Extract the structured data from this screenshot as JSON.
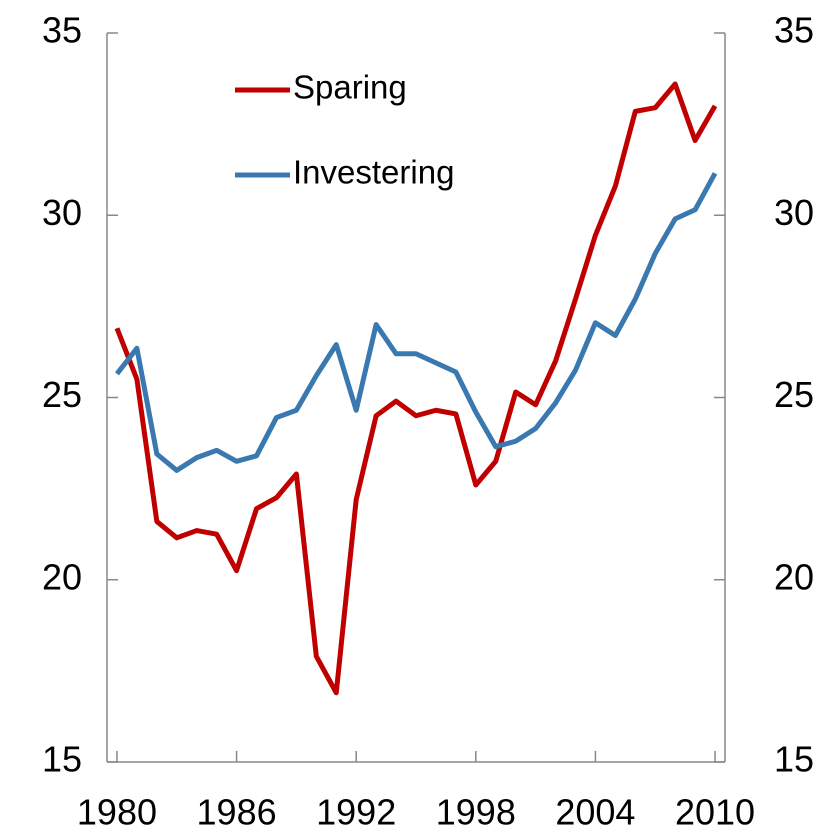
{
  "chart_data": {
    "type": "line",
    "x": [
      1980,
      1981,
      1982,
      1983,
      1984,
      1985,
      1986,
      1987,
      1988,
      1989,
      1990,
      1991,
      1992,
      1993,
      1994,
      1995,
      1996,
      1997,
      1998,
      1999,
      2000,
      2001,
      2002,
      2003,
      2004,
      2005,
      2006,
      2007,
      2008,
      2009,
      2010
    ],
    "series": [
      {
        "name": "Sparing",
        "color": "#c00000",
        "values": [
          26.9,
          25.5,
          21.6,
          21.15,
          21.35,
          21.25,
          20.25,
          21.95,
          22.25,
          22.9,
          17.9,
          16.9,
          22.2,
          24.5,
          24.9,
          24.5,
          24.65,
          24.55,
          22.6,
          23.25,
          25.15,
          24.8,
          26.0,
          27.7,
          29.45,
          30.8,
          32.85,
          32.95,
          33.6,
          32.05,
          33.0
        ]
      },
      {
        "name": "Investering",
        "color": "#3a78b0",
        "values": [
          25.65,
          26.35,
          23.45,
          23.0,
          23.35,
          23.55,
          23.25,
          23.4,
          24.45,
          24.65,
          25.6,
          26.45,
          24.65,
          27.0,
          26.2,
          26.2,
          25.95,
          25.7,
          24.6,
          23.65,
          23.8,
          24.15,
          24.85,
          25.75,
          27.05,
          26.7,
          27.7,
          28.95,
          29.9,
          30.15,
          31.15
        ]
      }
    ],
    "xlim": [
      1979.5,
      2010.5
    ],
    "xticks": [
      1980,
      1986,
      1992,
      1998,
      2004,
      2010
    ],
    "ylim": [
      15,
      35
    ],
    "yticks": [
      15,
      20,
      25,
      30,
      35
    ],
    "y2lim": [
      15,
      35
    ],
    "y2ticks": [
      15,
      20,
      25,
      30,
      35
    ],
    "legend": "upper left"
  }
}
